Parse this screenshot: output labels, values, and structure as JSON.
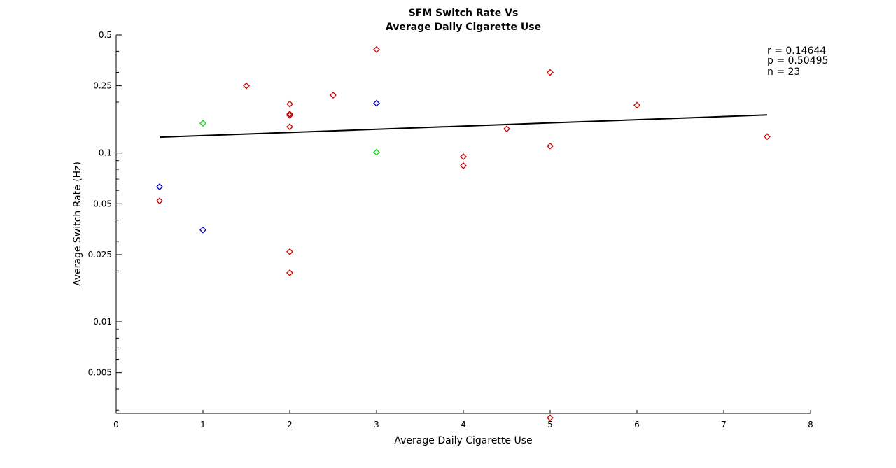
{
  "chart_data": {
    "type": "scatter",
    "title": [
      "SFM Switch Rate Vs",
      "Average Daily Cigarette Use"
    ],
    "xlabel": "Average Daily Cigarette Use",
    "ylabel": "Average Switch Rate (Hz)",
    "xlim": [
      0,
      8
    ],
    "ylim": [
      0.0028,
      0.5
    ],
    "yscale": "log",
    "xticks": [
      0,
      1,
      2,
      3,
      4,
      5,
      6,
      7,
      8
    ],
    "yticks": [
      0.005,
      0.01,
      0.025,
      0.05,
      0.1,
      0.25,
      0.5
    ],
    "ytick_labels": [
      "0.005",
      "0.01",
      "0.025",
      "0.05",
      "0.1",
      "0.25",
      "0.5"
    ],
    "grid": false,
    "series": [
      {
        "color": "#cc0000",
        "marker": "diamond",
        "points": [
          [
            0.5,
            0.052
          ],
          [
            1.5,
            0.25
          ],
          [
            2.0,
            0.195
          ],
          [
            2.0,
            0.17
          ],
          [
            2.0,
            0.167
          ],
          [
            2.0,
            0.143
          ],
          [
            2.0,
            0.026
          ],
          [
            2.0,
            0.0195
          ],
          [
            2.5,
            0.22
          ],
          [
            3.0,
            0.41
          ],
          [
            4.0,
            0.095
          ],
          [
            4.0,
            0.084
          ],
          [
            4.5,
            0.139
          ],
          [
            5.0,
            0.3
          ],
          [
            5.0,
            0.11
          ],
          [
            5.0,
            0.0027
          ],
          [
            6.0,
            0.192
          ],
          [
            7.5,
            0.125
          ]
        ]
      },
      {
        "color": "#0000cc",
        "marker": "diamond",
        "points": [
          [
            0.5,
            0.063
          ],
          [
            1.0,
            0.035
          ],
          [
            3.0,
            0.197
          ]
        ]
      },
      {
        "color": "#00dd00",
        "marker": "diamond",
        "points": [
          [
            1.0,
            0.15
          ],
          [
            3.0,
            0.101
          ]
        ]
      }
    ],
    "fit_line": {
      "x": [
        0.5,
        7.5
      ],
      "y": [
        0.124,
        0.168
      ],
      "color": "#000000"
    },
    "stats": [
      "r = 0.14644",
      "p = 0.50495",
      "n = 23"
    ]
  }
}
